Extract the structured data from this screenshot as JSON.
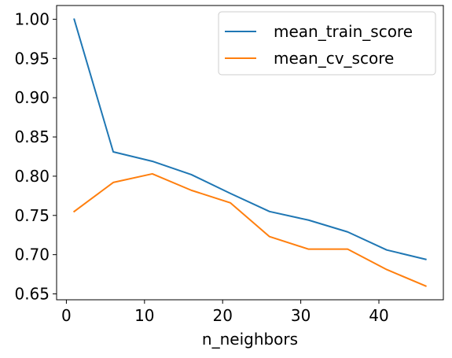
{
  "chart_data": {
    "type": "line",
    "title": "",
    "xlabel": "n_neighbors",
    "ylabel": "",
    "xlim": [
      -1.25,
      48.25
    ],
    "ylim": [
      0.6425,
      1.0175
    ],
    "x_ticks": [
      0,
      10,
      20,
      30,
      40
    ],
    "x_tick_labels": [
      "0",
      "10",
      "20",
      "30",
      "40"
    ],
    "y_ticks": [
      0.65,
      0.7,
      0.75,
      0.8,
      0.85,
      0.9,
      0.95,
      1.0
    ],
    "y_tick_labels": [
      "0.65",
      "0.70",
      "0.75",
      "0.80",
      "0.85",
      "0.90",
      "0.95",
      "1.00"
    ],
    "grid": false,
    "legend_position": "top-right",
    "x": [
      1,
      6,
      11,
      16,
      21,
      26,
      31,
      36,
      41,
      46
    ],
    "series": [
      {
        "name": "mean_train_score",
        "color": "#1f77b4",
        "values": [
          1.0,
          0.831,
          0.819,
          0.802,
          0.778,
          0.755,
          0.744,
          0.729,
          0.706,
          0.694
        ]
      },
      {
        "name": "mean_cv_score",
        "color": "#ff7f0e",
        "values": [
          0.755,
          0.792,
          0.803,
          0.782,
          0.766,
          0.723,
          0.707,
          0.707,
          0.681,
          0.66
        ]
      }
    ]
  }
}
